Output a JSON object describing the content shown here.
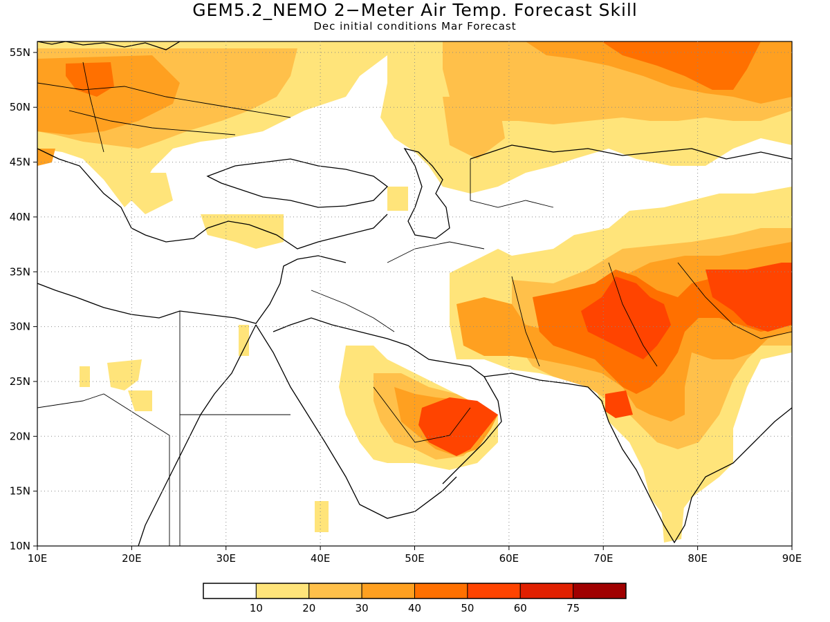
{
  "title": "GEM5.2_NEMO 2−Meter Air Temp. Forecast Skill",
  "subtitle": "Dec initial conditions  Mar Forecast",
  "map": {
    "lon_range": [
      10,
      90
    ],
    "lat_range": [
      10,
      56
    ],
    "x_ticks": [
      "10E",
      "20E",
      "30E",
      "40E",
      "50E",
      "60E",
      "70E",
      "80E",
      "90E"
    ],
    "y_ticks": [
      "10N",
      "15N",
      "20N",
      "25N",
      "30N",
      "35N",
      "40N",
      "45N",
      "50N",
      "55N"
    ],
    "grid": "dotted"
  },
  "colorbar": {
    "labels": [
      "10",
      "20",
      "30",
      "40",
      "50",
      "60",
      "75"
    ],
    "colors": [
      "#ffffff",
      "#ffe47a",
      "#ffc04a",
      "#ffa020",
      "#ff7000",
      "#ff4400",
      "#e02000",
      "#a00000"
    ]
  }
}
